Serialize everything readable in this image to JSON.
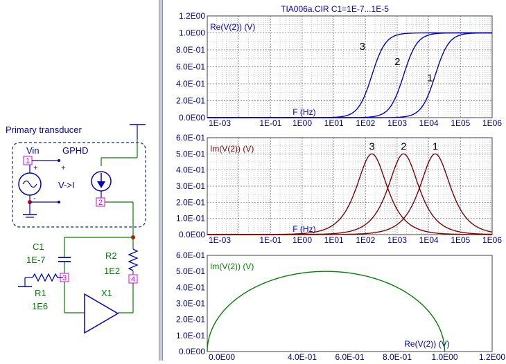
{
  "plot_title": "TIA006a.CIR C1=1E-7...1E-5",
  "schematic": {
    "block_label": "Primary transducer",
    "vin_label": "Vin",
    "gphd_label": "GPHD",
    "vi_label": "V->I",
    "c1_name": "C1",
    "c1_value": "1E-7",
    "r1_name": "R1",
    "r1_value": "1E6",
    "r2_name": "R2",
    "r2_value": "1E2",
    "x1_name": "X1",
    "node1": "1",
    "node2": "2",
    "node3": "3",
    "node4": "4",
    "plus_sign": "+",
    "minus_sign": "-"
  },
  "colors": {
    "real_curve": "#0000c0",
    "imag_curve": "#800000",
    "nyquist_curve": "#008000",
    "axis_label": "#0000c0",
    "schematic_label": "#0000c0",
    "node_marker": "#e000e0",
    "wire": "#008000",
    "component": "#0000c0",
    "junction": "#e00000"
  },
  "chart_data": [
    {
      "type": "line",
      "ylabel": "Re(V(2)) (V)",
      "xlabel": "F (Hz)",
      "x_scale": "log",
      "xlim": [
        0.001,
        1000000
      ],
      "ylim": [
        0,
        1.2
      ],
      "x_ticks": [
        "1E-03",
        "1E-01",
        "1E00",
        "1E01",
        "1E02",
        "1E03",
        "1E04",
        "1E05",
        "1E06"
      ],
      "y_ticks": [
        "0.0E00",
        "2.0E-01",
        "4.0E-01",
        "6.0E-01",
        "8.0E-01",
        "1.0E00",
        "1.2E00"
      ],
      "grid": true,
      "series": [
        {
          "name": "3",
          "fc": 159
        },
        {
          "name": "2",
          "fc": 1590
        },
        {
          "name": "1",
          "fc": 15900
        }
      ]
    },
    {
      "type": "line",
      "ylabel": "Im(V(2)) (V)",
      "xlabel": "F (Hz)",
      "x_scale": "log",
      "xlim": [
        0.001,
        1000000
      ],
      "ylim": [
        0,
        0.6
      ],
      "x_ticks": [
        "1E-03",
        "1E-01",
        "1E00",
        "1E01",
        "1E02",
        "1E03",
        "1E04",
        "1E05",
        "1E06"
      ],
      "y_ticks": [
        "0.0E00",
        "1.0E-01",
        "2.0E-01",
        "3.0E-01",
        "4.0E-01",
        "5.0E-01",
        "6.0E-01"
      ],
      "grid": true,
      "series": [
        {
          "name": "3",
          "fc": 159
        },
        {
          "name": "2",
          "fc": 1590
        },
        {
          "name": "1",
          "fc": 15900
        }
      ]
    },
    {
      "type": "line",
      "ylabel": "Im(V(2)) (V)",
      "xlabel": "Re(V(2)) (V)",
      "x_scale": "linear",
      "xlim": [
        0,
        1.2
      ],
      "ylim": [
        0,
        0.6
      ],
      "x_ticks": [
        "0.0E00",
        "4.0E-01",
        "6.0E-01",
        "8.0E-01",
        "1.0E00",
        "1.2E00"
      ],
      "x_tick_values": [
        0,
        0.4,
        0.6,
        0.8,
        1.0,
        1.2
      ],
      "y_ticks": [
        "0.0E00",
        "1.0E-01",
        "2.0E-01",
        "3.0E-01",
        "4.0E-01",
        "5.0E-01",
        "6.0E-01"
      ],
      "grid": false,
      "series": [
        {
          "name": "nyquist",
          "points": [
            [
              0,
              0
            ],
            [
              0.1,
              0.3
            ],
            [
              0.3,
              0.458
            ],
            [
              0.5,
              0.5
            ],
            [
              0.7,
              0.458
            ],
            [
              0.9,
              0.3
            ],
            [
              1.0,
              0
            ]
          ]
        }
      ]
    }
  ]
}
